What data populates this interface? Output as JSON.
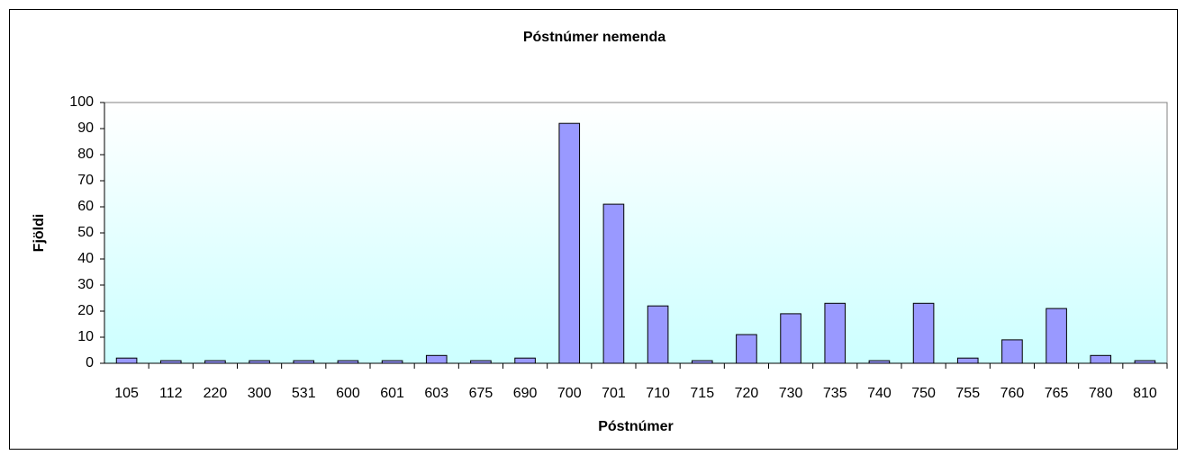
{
  "chart_data": {
    "type": "bar",
    "title": "Póstnúmer nemenda",
    "x_label": "Póstnúmer",
    "y_label": "Fjöldi",
    "categories": [
      "105",
      "112",
      "220",
      "300",
      "531",
      "600",
      "601",
      "603",
      "675",
      "690",
      "700",
      "701",
      "710",
      "715",
      "720",
      "730",
      "735",
      "740",
      "750",
      "755",
      "760",
      "765",
      "780",
      "810"
    ],
    "values": [
      2,
      1,
      1,
      1,
      1,
      1,
      1,
      3,
      1,
      2,
      92,
      61,
      22,
      1,
      11,
      19,
      23,
      1,
      23,
      2,
      9,
      21,
      3,
      1
    ],
    "color": "#9999ff",
    "ylim": [
      0,
      100
    ],
    "yticks": [
      0,
      10,
      20,
      30,
      40,
      50,
      60,
      70,
      80,
      90,
      100
    ],
    "grid": false
  }
}
